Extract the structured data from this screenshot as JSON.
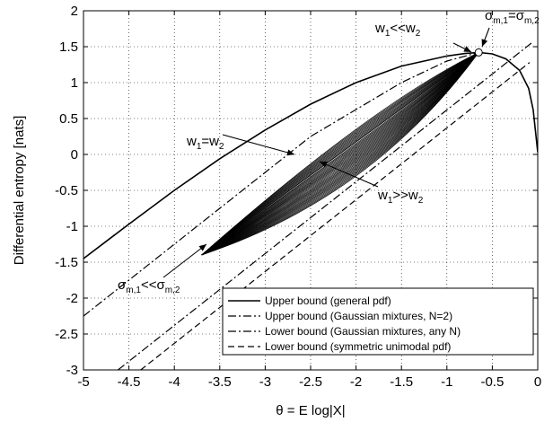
{
  "chart_data": {
    "type": "line",
    "xlabel": "θ = E log|X|",
    "ylabel": "Differential entropy [nats]",
    "xlim": [
      -5,
      0
    ],
    "ylim": [
      -3,
      2
    ],
    "x_ticks": [
      "-5",
      "-4.5",
      "-4",
      "-3.5",
      "-3",
      "-2.5",
      "-2",
      "-1.5",
      "-1",
      "-0.5",
      "0"
    ],
    "y_ticks": [
      "2",
      "1.5",
      "1",
      "0.5",
      "0",
      "-0.5",
      "-1",
      "-1.5",
      "-2",
      "-2.5",
      "-3"
    ],
    "grid": true,
    "legend_position": "bottom-right",
    "series": [
      {
        "name": "Upper bound (general pdf)",
        "style": "solid",
        "x": [
          -5,
          -4.5,
          -4,
          -3.5,
          -3,
          -2.5,
          -2,
          -1.5,
          -1,
          -0.8,
          -0.65,
          -0.5,
          -0.35,
          -0.2,
          -0.1,
          -0.05,
          0
        ],
        "y": [
          -1.45,
          -0.97,
          -0.5,
          -0.06,
          0.34,
          0.7,
          1.0,
          1.23,
          1.37,
          1.405,
          1.42,
          1.4,
          1.33,
          1.17,
          0.92,
          0.62,
          0.03
        ]
      },
      {
        "name": "Upper bound (Gaussian mixtures, N=2)",
        "style": "dashdot",
        "x": [
          -5,
          -3.5,
          -2.5,
          -1.5,
          -1,
          -0.65
        ],
        "y": [
          -2.25,
          -0.75,
          0.25,
          1.0,
          1.3,
          1.42
        ]
      },
      {
        "name": "Lower bound (Gaussian mixtures, any N)",
        "style": "dashdot",
        "x": [
          -4.62,
          -1.16,
          -0.07
        ],
        "y": [
          -3.0,
          0.46,
          1.55
        ]
      },
      {
        "name": "Lower bound (symmetric unimodal pdf)",
        "style": "dashed",
        "x": [
          -4.37,
          -0.09
        ],
        "y": [
          -3.0,
          1.28
        ]
      }
    ],
    "family_curves": {
      "count": 40,
      "start_point": [
        -3.7,
        -1.4
      ],
      "end_point": [
        -0.65,
        1.42
      ],
      "upper_edge_w1_eq_w2": {
        "x": [
          -3.7,
          -3.0,
          -2.0,
          -1.0,
          -0.65
        ],
        "y": [
          -1.4,
          -0.6,
          0.35,
          1.2,
          1.42
        ]
      },
      "lower_edge_w1_gg_w2": {
        "x": [
          -3.7,
          -3.0,
          -2.0,
          -1.0,
          -0.65
        ],
        "y": [
          -1.4,
          -1.15,
          -0.3,
          0.9,
          1.42
        ]
      }
    },
    "annotations": [
      {
        "main": "w",
        "sub": "1",
        "rest": "<<w",
        "sub2": "2"
      },
      {
        "main": "σ",
        "sub": "m,1",
        "rest": "=σ",
        "sub2": "m,2"
      },
      {
        "main": "w",
        "sub": "1",
        "rest": "=w",
        "sub2": "2"
      },
      {
        "main": "w",
        "sub": "1",
        "rest": ">>w",
        "sub2": "2"
      },
      {
        "main": "σ",
        "sub": "m,1",
        "rest": "<<σ",
        "sub2": "m,2"
      }
    ]
  }
}
